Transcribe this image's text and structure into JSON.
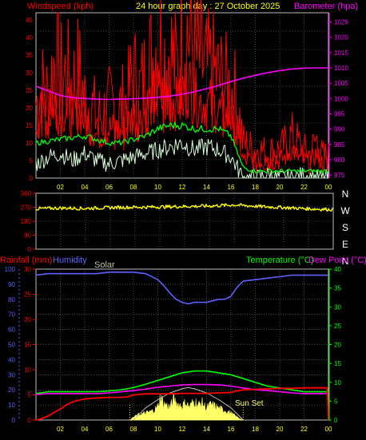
{
  "header": {
    "left_title": "Windspeed (kph)",
    "center_title": "24 hour graph day : 27 October 2025",
    "right_title": "Barometer (hpa)"
  },
  "colors": {
    "background": "#000000",
    "grid": "#7a7a7a",
    "wind_avg": "#ff0000",
    "wind_gust": "#ff0000",
    "wind_average_line": "#00ff00",
    "wind_lull": "#d9ffd9",
    "barometer": "#ff00ff",
    "wind_direction": "#ffff00",
    "rainfall": "#ff0000",
    "humidity": "#6060ff",
    "temperature": "#00ff00",
    "dew_point": "#ff00ff",
    "solar": "#ffff66",
    "solar_theoretical": "#c0c0c0",
    "header_left": "#ff0000",
    "header_center": "#ffff00",
    "header_right": "#ff00ff",
    "tick_left": "#ff0000",
    "tick_right": "#ff00ff",
    "tick_x": "#ffff00",
    "tick_dir": "#ff0000",
    "solar_label": "#c0c0a0"
  },
  "chart_data": [
    {
      "name": "wind",
      "type": "line",
      "title": "24 hour graph day : 27 October 2025",
      "ylabel": "Windspeed (kph)",
      "y2label": "Barometer (hpa)",
      "x_ticks": [
        "02",
        "04",
        "06",
        "08",
        "10",
        "12",
        "14",
        "16",
        "18",
        "20",
        "22",
        "00"
      ],
      "y_ticks": [
        "0",
        "5",
        "10",
        "15",
        "20",
        "25",
        "30",
        "35",
        "40",
        "45"
      ],
      "y2_ticks": [
        "975",
        "980",
        "985",
        "990",
        "995",
        "1000",
        "1005",
        "1010",
        "1015",
        "1020",
        "1025"
      ],
      "xlim": [
        0,
        24
      ],
      "ylim": [
        0,
        47
      ],
      "y2lim": [
        974,
        1028
      ],
      "grid": true,
      "series": [
        {
          "name": "gust",
          "x": [
            0,
            0.5,
            1,
            1.5,
            2,
            2.5,
            3,
            3.5,
            4,
            4.5,
            5,
            5.5,
            6,
            6.5,
            7,
            7.5,
            8,
            8.5,
            9,
            9.5,
            10,
            10.5,
            11,
            11.5,
            12,
            12.5,
            13,
            13.5,
            14,
            14.5,
            15,
            15.5,
            16,
            16.5,
            17,
            17.5,
            18,
            18.5,
            19,
            19.5,
            20,
            20.5,
            21,
            21.5,
            22,
            22.5,
            23,
            23.5,
            24
          ],
          "values": [
            21,
            25,
            23,
            33,
            28,
            29,
            26,
            30,
            22,
            21,
            17,
            18,
            20,
            20,
            20,
            22,
            29,
            24,
            29,
            33,
            40,
            34,
            36,
            30,
            38,
            42,
            34,
            33,
            30,
            30,
            28,
            26,
            25,
            22,
            10,
            9,
            8,
            8,
            7,
            8,
            8,
            10,
            12,
            10,
            8,
            7,
            11,
            6,
            6
          ]
        },
        {
          "name": "speed",
          "x": [
            0,
            0.5,
            1,
            1.5,
            2,
            2.5,
            3,
            3.5,
            4,
            4.5,
            5,
            5.5,
            6,
            6.5,
            7,
            7.5,
            8,
            8.5,
            9,
            9.5,
            10,
            10.5,
            11,
            11.5,
            12,
            12.5,
            13,
            13.5,
            14,
            14.5,
            15,
            15.5,
            16,
            16.5,
            17,
            17.5,
            18,
            18.5,
            19,
            19.5,
            20,
            20.5,
            21,
            21.5,
            22,
            22.5,
            23,
            23.5,
            24
          ],
          "values": [
            15,
            19,
            16,
            22,
            18,
            20,
            17,
            20,
            16,
            15,
            12,
            13,
            14,
            14,
            13,
            15,
            18,
            16,
            20,
            22,
            25,
            23,
            24,
            21,
            25,
            27,
            23,
            22,
            21,
            21,
            19,
            18,
            17,
            13,
            5,
            5,
            4,
            5,
            4,
            5,
            5,
            6,
            8,
            6,
            5,
            4,
            7,
            4,
            4
          ]
        },
        {
          "name": "average",
          "x": [
            0,
            1,
            2,
            3,
            4,
            5,
            6,
            7,
            8,
            9,
            10,
            11,
            12,
            13,
            14,
            15,
            16,
            17,
            18,
            19,
            20,
            21,
            22,
            23,
            24
          ],
          "values": [
            10,
            10.5,
            11,
            11.5,
            12,
            11,
            10,
            10,
            11,
            12,
            14,
            15,
            15,
            14,
            14,
            14,
            12,
            3,
            2,
            2,
            2,
            2,
            2,
            2,
            2
          ]
        },
        {
          "name": "lull",
          "x": [
            0,
            1,
            2,
            3,
            4,
            5,
            6,
            7,
            8,
            9,
            10,
            11,
            12,
            13,
            14,
            15,
            16,
            17,
            18,
            19,
            20,
            21,
            22,
            23,
            24
          ],
          "values": [
            4,
            6,
            7,
            5,
            7,
            5,
            4,
            5,
            6,
            7,
            8,
            9,
            10,
            8,
            9,
            8,
            6,
            0,
            0,
            1,
            0,
            0,
            1,
            0,
            0
          ]
        },
        {
          "name": "barometer",
          "x": [
            0,
            1,
            2,
            3,
            4,
            5,
            6,
            7,
            8,
            9,
            10,
            11,
            12,
            13,
            14,
            15,
            16,
            17,
            18,
            19,
            20,
            21,
            22,
            23,
            24
          ],
          "values": [
            1004,
            1002.5,
            1001,
            1000.3,
            1000,
            999.8,
            999.7,
            999.8,
            999.9,
            1000.1,
            1000.4,
            1000.8,
            1001.4,
            1002.2,
            1003.2,
            1004.3,
            1005.5,
            1006.6,
            1007.6,
            1008.4,
            1009.1,
            1009.6,
            1009.9,
            1010,
            1010
          ]
        }
      ]
    },
    {
      "name": "direction",
      "type": "line",
      "y_ticks": [
        "0",
        "90",
        "180",
        "270",
        "360"
      ],
      "direction_labels": [
        "N",
        "W",
        "S",
        "E",
        "N"
      ],
      "ylim": [
        0,
        360
      ],
      "xlim": [
        0,
        24
      ],
      "series": [
        {
          "name": "direction",
          "x": [
            0,
            2,
            4,
            6,
            8,
            10,
            12,
            14,
            16,
            18,
            20,
            22,
            24
          ],
          "values": [
            260,
            265,
            262,
            268,
            270,
            272,
            275,
            278,
            285,
            275,
            268,
            260,
            255
          ]
        }
      ]
    },
    {
      "name": "temperature_rain",
      "type": "line",
      "left_labels": [
        "Rainfall (mm)",
        "Humidity",
        "Solar"
      ],
      "right_labels": [
        "Temperature (°C)",
        "Dew Point (°C)"
      ],
      "annotations": [
        "Sun Set"
      ],
      "x_ticks": [
        "02",
        "04",
        "06",
        "08",
        "10",
        "12",
        "14",
        "16",
        "18",
        "20",
        "22",
        "00"
      ],
      "humidity_ticks": [
        "0",
        "10",
        "20",
        "30",
        "40",
        "50",
        "60",
        "70",
        "80",
        "90",
        "100"
      ],
      "rain_ticks": [
        "0",
        "5",
        "10",
        "15",
        "20",
        "25",
        "30"
      ],
      "temperature_ticks": [
        "0",
        "5",
        "10",
        "15",
        "20",
        "25",
        "30",
        "35",
        "40"
      ],
      "xlim": [
        0,
        24
      ],
      "grid": true,
      "series": [
        {
          "name": "humidity",
          "x": [
            0,
            1,
            2,
            3,
            4,
            5,
            6,
            7,
            8,
            9,
            10,
            10.5,
            11,
            11.5,
            12,
            12.5,
            13,
            13.5,
            14,
            14.5,
            15,
            15.5,
            16,
            16.5,
            17,
            18,
            19,
            20,
            21,
            22,
            23,
            24
          ],
          "values": [
            96,
            97,
            97,
            97,
            97,
            97,
            98,
            98,
            98,
            97,
            93,
            89,
            84,
            80,
            78,
            77,
            78,
            78,
            78,
            79,
            80,
            80,
            82,
            88,
            92,
            93,
            94,
            95,
            96,
            96,
            96,
            96
          ]
        },
        {
          "name": "temperature",
          "x": [
            0,
            1,
            2,
            3,
            4,
            5,
            6,
            7,
            8,
            9,
            10,
            11,
            12,
            13,
            14,
            15,
            16,
            17,
            18,
            19,
            20,
            21,
            22,
            23,
            24
          ],
          "values": [
            7,
            7.5,
            7.5,
            7.5,
            7.5,
            7.5,
            7.7,
            8,
            8.6,
            9.5,
            10.5,
            11.5,
            12.5,
            13,
            13,
            12.5,
            12,
            11,
            10,
            9,
            8.5,
            8,
            7.5,
            7.5,
            7.5
          ]
        },
        {
          "name": "dew_point",
          "x": [
            0,
            1,
            2,
            3,
            4,
            5,
            6,
            7,
            8,
            9,
            10,
            11,
            12,
            13,
            14,
            15,
            16,
            17,
            18,
            19,
            20,
            21,
            22,
            23,
            24
          ],
          "values": [
            6.8,
            7,
            7,
            7,
            7,
            7,
            7.2,
            7.5,
            7.8,
            8.2,
            8.7,
            9,
            9.3,
            9.4,
            9.4,
            9.3,
            9,
            8.5,
            8,
            7.8,
            7.5,
            7.2,
            7,
            7,
            7
          ]
        },
        {
          "name": "rainfall",
          "x": [
            0,
            0.5,
            1,
            1.5,
            2,
            2.5,
            3,
            4,
            5,
            6,
            7,
            7.5,
            8,
            9,
            10,
            11,
            12,
            13,
            14,
            15,
            16,
            16.5,
            17,
            18,
            19,
            20,
            21,
            22,
            23,
            23.9,
            24
          ],
          "values": [
            0,
            0.3,
            0.8,
            1.5,
            2.2,
            3,
            3.6,
            4.2,
            4.4,
            4.5,
            4.5,
            4.6,
            5,
            5.2,
            5.2,
            5.2,
            5.3,
            5.3,
            5.3,
            5.4,
            5.5,
            5.8,
            6,
            6.1,
            6.2,
            6.3,
            6.3,
            6.4,
            6.4,
            6.4,
            0
          ]
        },
        {
          "name": "solar",
          "x": [
            7.7,
            8,
            8.5,
            9,
            9.5,
            10,
            10.2,
            10.5,
            11,
            11.3,
            11.6,
            12,
            12.3,
            12.6,
            13,
            13.3,
            13.6,
            14,
            14.3,
            14.7,
            15,
            15.3,
            15.6,
            16,
            16.3,
            16.6,
            17
          ],
          "values": [
            0,
            5,
            10,
            12,
            15,
            22,
            40,
            28,
            22,
            35,
            28,
            24,
            30,
            22,
            34,
            25,
            30,
            20,
            26,
            24,
            20,
            18,
            16,
            12,
            8,
            4,
            0
          ]
        },
        {
          "name": "solar_theoretical",
          "x": [
            8,
            9,
            10,
            11,
            12,
            12.5,
            13,
            14,
            15,
            16,
            17
          ],
          "values": [
            0,
            18,
            30,
            40,
            46,
            48,
            46,
            40,
            30,
            18,
            0
          ]
        }
      ]
    }
  ]
}
